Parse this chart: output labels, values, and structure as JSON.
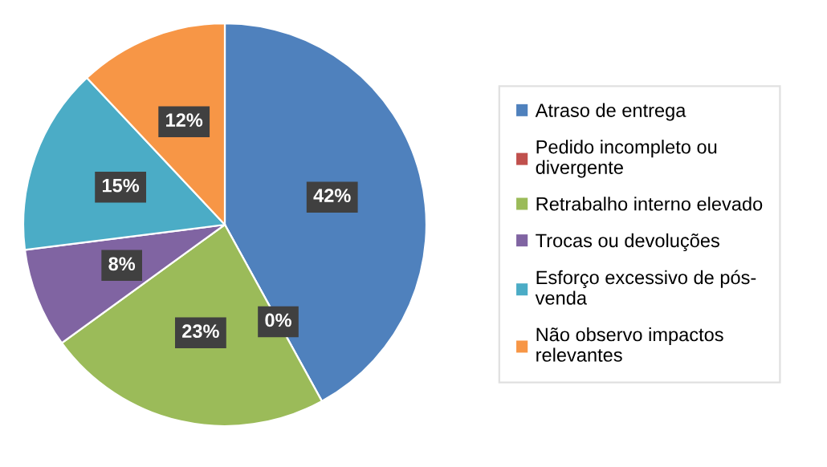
{
  "chart_data": {
    "type": "pie",
    "categories": [
      "Atraso de entrega",
      "Pedido incompleto ou\ndivergente",
      "Retrabalho interno elevado",
      "Trocas ou devoluções",
      "Esforço excessivo de pós-\nvenda",
      "Não observo impactos\nrelevantes"
    ],
    "values": [
      42,
      0,
      23,
      8,
      15,
      12
    ],
    "colors": [
      "#4f81bd",
      "#c0504d",
      "#9bbb59",
      "#8064a2",
      "#4bacc6",
      "#f79646"
    ],
    "value_labels": [
      "42%",
      "0%",
      "23%",
      "8%",
      "15%",
      "12%"
    ],
    "legend": "right"
  }
}
